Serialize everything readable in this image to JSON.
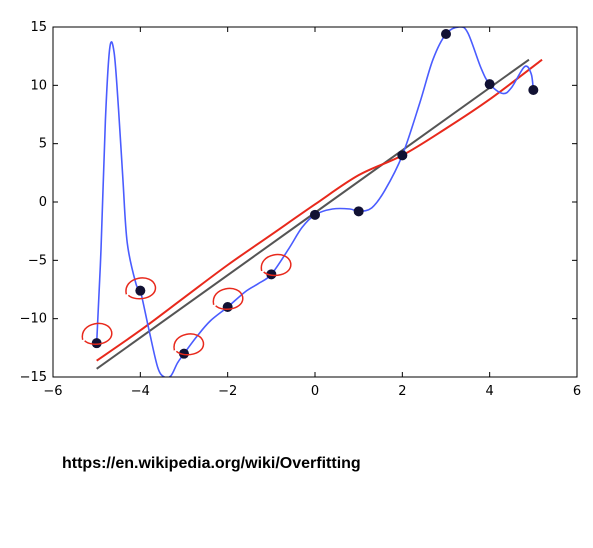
{
  "caption": "https://en.wikipedia.org/wiki/Overfitting",
  "chart_data": {
    "type": "scatter",
    "title": "",
    "xlabel": "",
    "ylabel": "",
    "xlim": [
      -6,
      6
    ],
    "ylim": [
      -15,
      15
    ],
    "x_ticks": [
      -6,
      -4,
      -2,
      0,
      2,
      4,
      6
    ],
    "y_ticks": [
      -15,
      -10,
      -5,
      0,
      5,
      10,
      15
    ],
    "grid": false,
    "points": [
      {
        "x": -5,
        "y": -12.1
      },
      {
        "x": -4,
        "y": -7.6
      },
      {
        "x": -3,
        "y": -13.0
      },
      {
        "x": -2,
        "y": -9.0
      },
      {
        "x": -1,
        "y": -6.2
      },
      {
        "x": 0,
        "y": -1.1
      },
      {
        "x": 1,
        "y": -0.8
      },
      {
        "x": 2,
        "y": 4.0
      },
      {
        "x": 3,
        "y": 14.4
      },
      {
        "x": 4,
        "y": 10.1
      },
      {
        "x": 5,
        "y": 9.6
      }
    ],
    "series": [
      {
        "color": "#4a5cff",
        "x": [
          -5,
          -4.9,
          -4.8,
          -4.7,
          -4.6,
          -4.5,
          -4.4,
          -4.3,
          -4.1,
          -4.0,
          -3.8,
          -3.6,
          -3.45,
          -3.3,
          -3.15,
          -3.0,
          -2.7,
          -2.4,
          -2.0,
          -1.6,
          -1.3,
          -1.0,
          -0.6,
          -0.3,
          0.0,
          0.4,
          0.8,
          1.0,
          1.3,
          1.6,
          2.0,
          2.4,
          2.7,
          3.0,
          3.3,
          3.5,
          3.8,
          4.0,
          4.3,
          4.5,
          4.8,
          4.95,
          5.0
        ],
        "y": [
          -12.1,
          -4,
          7,
          13.2,
          12.8,
          8,
          2,
          -3.5,
          -7,
          -7.6,
          -11,
          -14.2,
          -15.0,
          -14.9,
          -13.8,
          -13.0,
          -11.5,
          -10.2,
          -9.0,
          -7.7,
          -7.0,
          -6.2,
          -4.0,
          -2.2,
          -1.1,
          -0.6,
          -0.6,
          -0.8,
          -0.5,
          1.0,
          4.0,
          8.5,
          12.2,
          14.4,
          15.0,
          14.5,
          11.5,
          10.1,
          9.3,
          9.8,
          11.6,
          11.0,
          9.6
        ]
      },
      {
        "color": "#e8291c",
        "x": [
          -5,
          -4,
          -3,
          -2,
          -1,
          0,
          1,
          2,
          3,
          4,
          5.2
        ],
        "y": [
          -13.6,
          -11.0,
          -8.2,
          -5.4,
          -2.8,
          -0.2,
          2.3,
          4.0,
          6.3,
          8.8,
          12.2
        ]
      },
      {
        "color": "#555555",
        "x": [
          -5,
          4.9
        ],
        "y": [
          -14.3,
          12.2
        ]
      }
    ],
    "highlight_circles": [
      {
        "x": -5,
        "y": -11.3
      },
      {
        "x": -4,
        "y": -7.4
      },
      {
        "x": -2.9,
        "y": -12.2
      },
      {
        "x": -2.0,
        "y": -8.3
      },
      {
        "x": -0.9,
        "y": -5.4
      }
    ]
  }
}
